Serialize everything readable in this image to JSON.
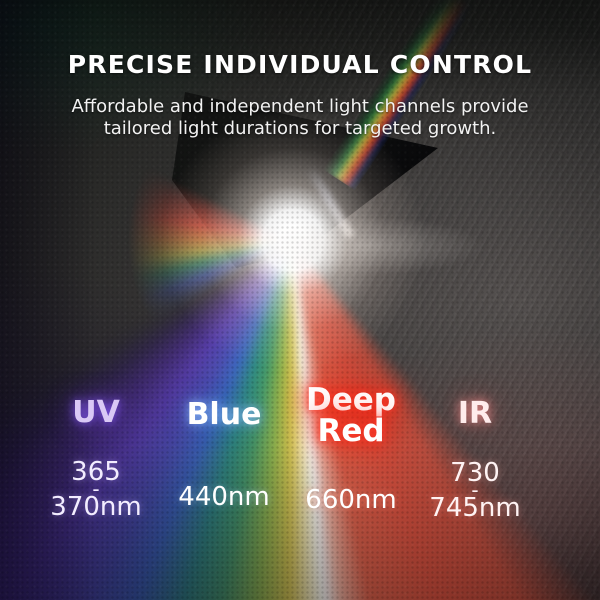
{
  "header": {
    "title": "PRECISE INDIVIDUAL CONTROL",
    "subtitle_line1": "Affordable and independent light channels provide",
    "subtitle_line2": "tailored light durations for targeted growth."
  },
  "channels": [
    {
      "name": "UV",
      "label_lines": [
        "UV"
      ],
      "value_lines": [
        "365",
        "-",
        "370nm"
      ],
      "label_color": "#d9c9f5",
      "glow_color": "#7a4fd0"
    },
    {
      "name": "Blue",
      "label_lines": [
        "Blue"
      ],
      "value_lines": [
        "440nm"
      ],
      "label_color": "#ffffff",
      "glow_color": "#5a96ff"
    },
    {
      "name": "Deep Red",
      "label_lines": [
        "Deep",
        "Red"
      ],
      "value_lines": [
        "660nm"
      ],
      "label_color": "#ffffff",
      "glow_color": "#ff2b1a"
    },
    {
      "name": "IR",
      "label_lines": [
        "IR"
      ],
      "value_lines": [
        "730",
        "-",
        "745nm"
      ],
      "label_color": "#ffecec",
      "glow_color": "#ff8a7a"
    }
  ],
  "scene": {
    "subject": "glass prism dispersing white light into a color spectrum on dark slate",
    "spectrum_colors": [
      "#5a3fb2",
      "#3d6cc8",
      "#2f9187",
      "#46a06b",
      "#ddcb4e",
      "#ffffff",
      "#d94f3d"
    ],
    "background_color": "#222222"
  }
}
